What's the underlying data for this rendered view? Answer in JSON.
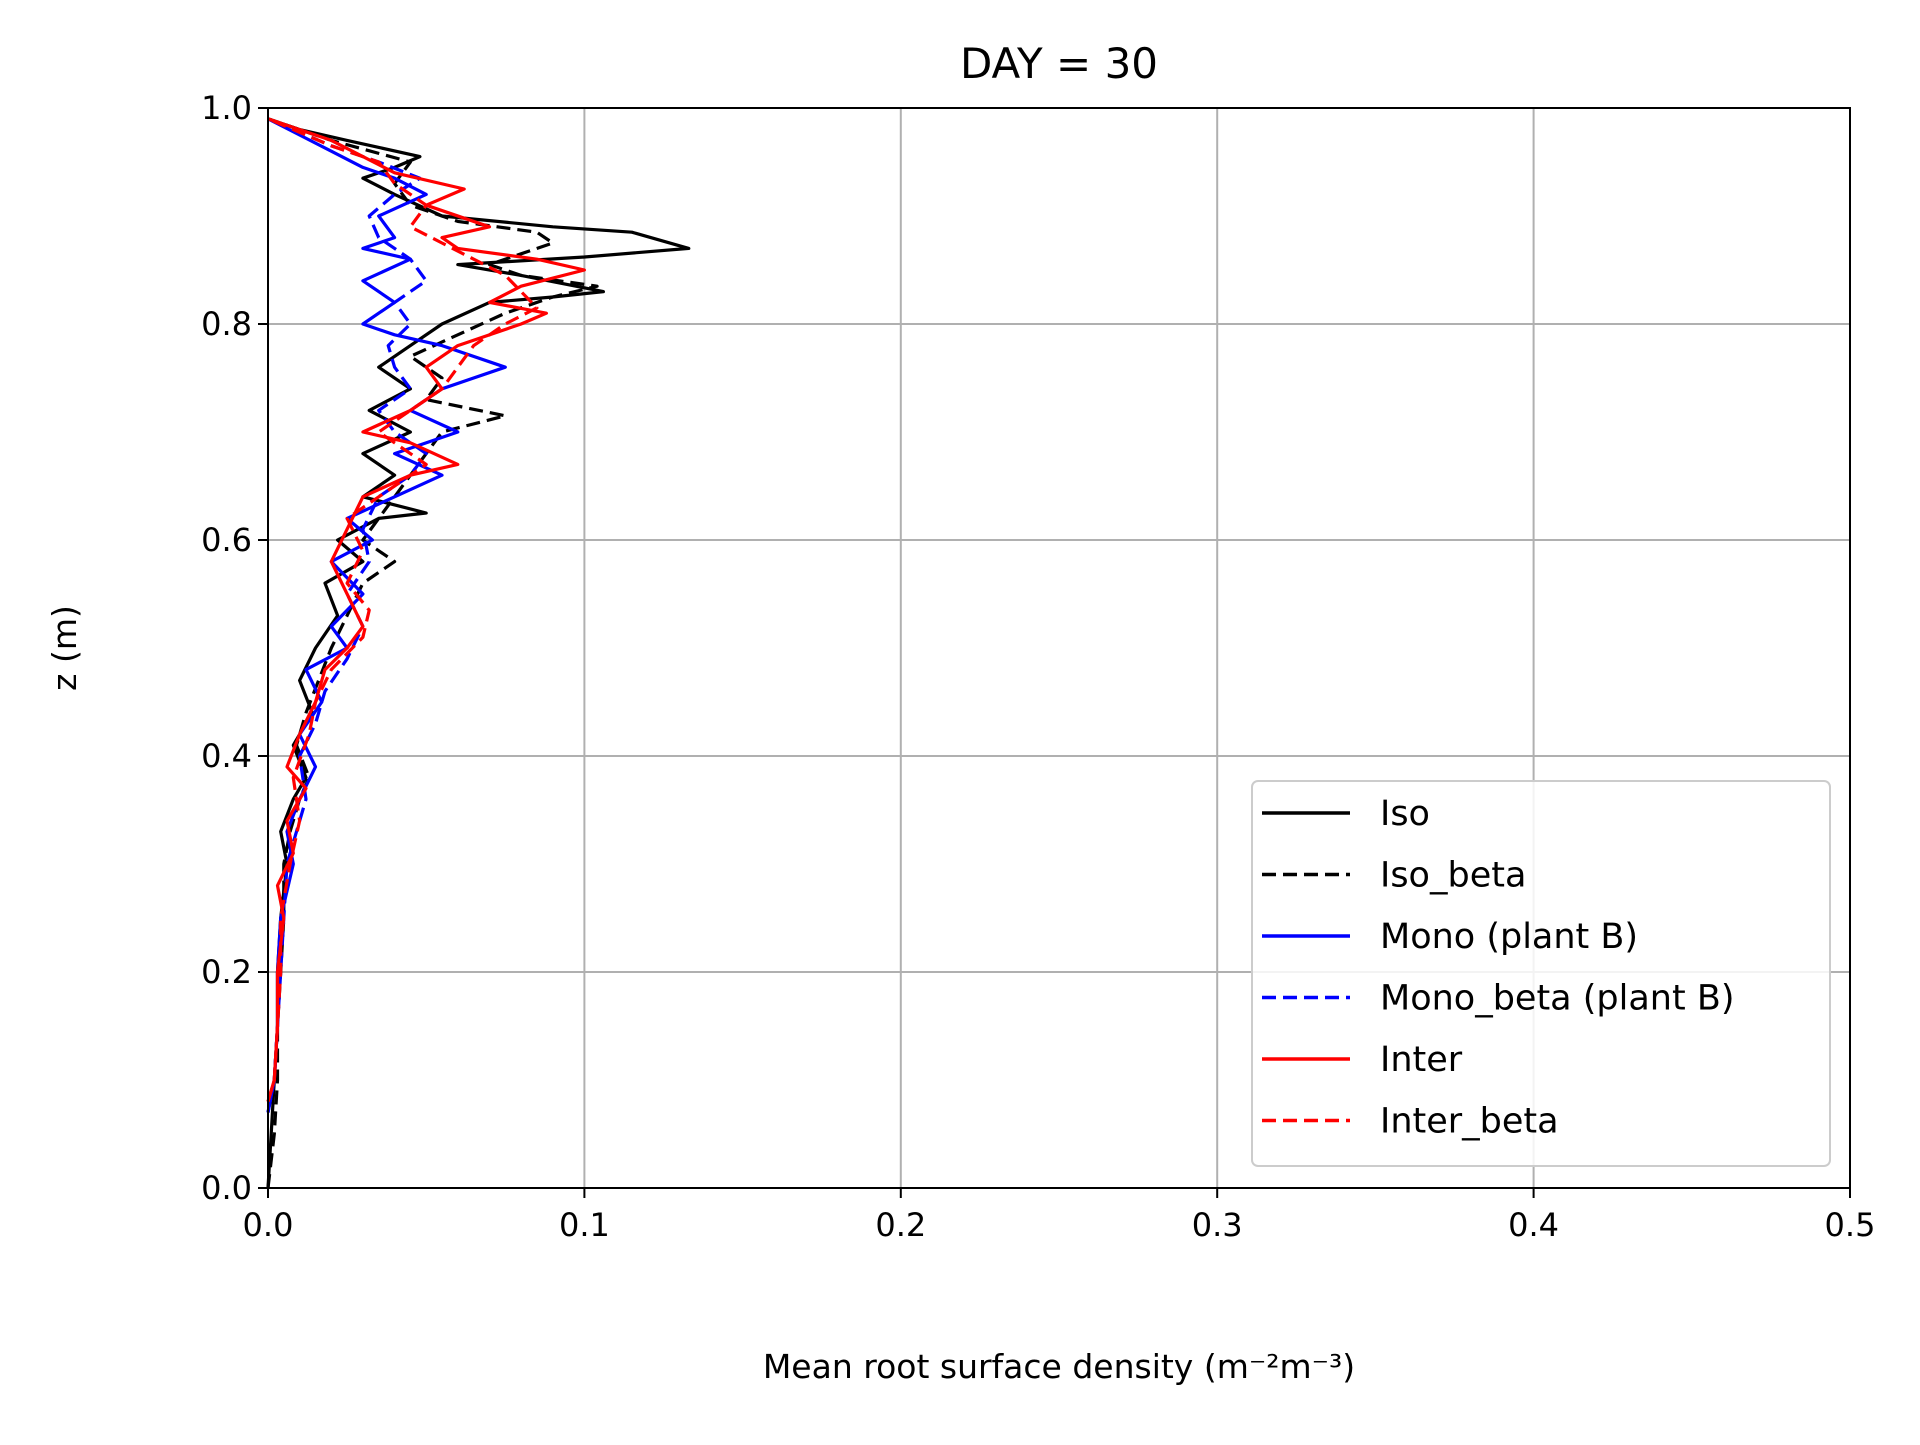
{
  "chart_data": {
    "type": "line",
    "title": "DAY = 30",
    "xlabel": "Mean root surface density (m⁻²m⁻³)",
    "ylabel": "z (m)",
    "xlim": [
      0.0,
      0.5
    ],
    "ylim": [
      0.0,
      1.0
    ],
    "xticks": [
      "0.0",
      "0.1",
      "0.2",
      "0.3",
      "0.4",
      "0.5"
    ],
    "yticks": [
      "0.0",
      "0.2",
      "0.4",
      "0.6",
      "0.8",
      "1.0"
    ],
    "grid": true,
    "legend_position": "lower right",
    "series": [
      {
        "name": "Iso",
        "color": "#000000",
        "dash": "solid",
        "points": [
          [
            0.0,
            0.0
          ],
          [
            0.001,
            0.05
          ],
          [
            0.002,
            0.1
          ],
          [
            0.003,
            0.15
          ],
          [
            0.003,
            0.2
          ],
          [
            0.004,
            0.25
          ],
          [
            0.006,
            0.3
          ],
          [
            0.004,
            0.33
          ],
          [
            0.008,
            0.36
          ],
          [
            0.012,
            0.38
          ],
          [
            0.008,
            0.41
          ],
          [
            0.014,
            0.44
          ],
          [
            0.01,
            0.47
          ],
          [
            0.015,
            0.5
          ],
          [
            0.022,
            0.53
          ],
          [
            0.018,
            0.56
          ],
          [
            0.03,
            0.58
          ],
          [
            0.022,
            0.6
          ],
          [
            0.035,
            0.62
          ],
          [
            0.05,
            0.625
          ],
          [
            0.03,
            0.64
          ],
          [
            0.04,
            0.66
          ],
          [
            0.03,
            0.68
          ],
          [
            0.045,
            0.7
          ],
          [
            0.032,
            0.72
          ],
          [
            0.045,
            0.74
          ],
          [
            0.035,
            0.76
          ],
          [
            0.045,
            0.78
          ],
          [
            0.055,
            0.8
          ],
          [
            0.07,
            0.82
          ],
          [
            0.09,
            0.825
          ],
          [
            0.106,
            0.83
          ],
          [
            0.08,
            0.845
          ],
          [
            0.06,
            0.855
          ],
          [
            0.1,
            0.862
          ],
          [
            0.133,
            0.87
          ],
          [
            0.115,
            0.885
          ],
          [
            0.09,
            0.89
          ],
          [
            0.055,
            0.9
          ],
          [
            0.04,
            0.92
          ],
          [
            0.03,
            0.935
          ],
          [
            0.04,
            0.945
          ],
          [
            0.048,
            0.955
          ],
          [
            0.025,
            0.97
          ],
          [
            0.01,
            0.98
          ],
          [
            0.0,
            0.99
          ]
        ]
      },
      {
        "name": "Iso_beta",
        "color": "#000000",
        "dash": "dashed",
        "points": [
          [
            0.0,
            0.0
          ],
          [
            0.002,
            0.05
          ],
          [
            0.003,
            0.1
          ],
          [
            0.003,
            0.15
          ],
          [
            0.004,
            0.2
          ],
          [
            0.005,
            0.25
          ],
          [
            0.005,
            0.3
          ],
          [
            0.007,
            0.33
          ],
          [
            0.01,
            0.36
          ],
          [
            0.013,
            0.38
          ],
          [
            0.009,
            0.41
          ],
          [
            0.012,
            0.44
          ],
          [
            0.016,
            0.47
          ],
          [
            0.02,
            0.5
          ],
          [
            0.025,
            0.53
          ],
          [
            0.03,
            0.56
          ],
          [
            0.04,
            0.58
          ],
          [
            0.03,
            0.6
          ],
          [
            0.035,
            0.62
          ],
          [
            0.04,
            0.64
          ],
          [
            0.045,
            0.66
          ],
          [
            0.05,
            0.68
          ],
          [
            0.055,
            0.7
          ],
          [
            0.075,
            0.715
          ],
          [
            0.05,
            0.73
          ],
          [
            0.055,
            0.75
          ],
          [
            0.045,
            0.77
          ],
          [
            0.06,
            0.79
          ],
          [
            0.075,
            0.81
          ],
          [
            0.09,
            0.825
          ],
          [
            0.104,
            0.835
          ],
          [
            0.08,
            0.845
          ],
          [
            0.07,
            0.855
          ],
          [
            0.08,
            0.865
          ],
          [
            0.09,
            0.875
          ],
          [
            0.085,
            0.885
          ],
          [
            0.06,
            0.895
          ],
          [
            0.045,
            0.91
          ],
          [
            0.04,
            0.93
          ],
          [
            0.045,
            0.95
          ],
          [
            0.02,
            0.97
          ],
          [
            0.0,
            0.99
          ]
        ]
      },
      {
        "name": "Mono (plant B)",
        "color": "#0000ff",
        "dash": "solid",
        "points": [
          [
            0.0,
            0.07
          ],
          [
            0.002,
            0.1
          ],
          [
            0.003,
            0.15
          ],
          [
            0.003,
            0.2
          ],
          [
            0.004,
            0.25
          ],
          [
            0.008,
            0.3
          ],
          [
            0.006,
            0.33
          ],
          [
            0.01,
            0.36
          ],
          [
            0.015,
            0.39
          ],
          [
            0.01,
            0.42
          ],
          [
            0.017,
            0.45
          ],
          [
            0.012,
            0.48
          ],
          [
            0.025,
            0.5
          ],
          [
            0.02,
            0.52
          ],
          [
            0.03,
            0.55
          ],
          [
            0.02,
            0.58
          ],
          [
            0.033,
            0.6
          ],
          [
            0.025,
            0.62
          ],
          [
            0.04,
            0.64
          ],
          [
            0.055,
            0.66
          ],
          [
            0.04,
            0.68
          ],
          [
            0.06,
            0.7
          ],
          [
            0.045,
            0.72
          ],
          [
            0.055,
            0.74
          ],
          [
            0.075,
            0.76
          ],
          [
            0.055,
            0.78
          ],
          [
            0.04,
            0.79
          ],
          [
            0.03,
            0.8
          ],
          [
            0.04,
            0.82
          ],
          [
            0.03,
            0.84
          ],
          [
            0.045,
            0.86
          ],
          [
            0.03,
            0.87
          ],
          [
            0.04,
            0.88
          ],
          [
            0.035,
            0.9
          ],
          [
            0.05,
            0.92
          ],
          [
            0.04,
            0.935
          ],
          [
            0.03,
            0.945
          ],
          [
            0.02,
            0.96
          ],
          [
            0.01,
            0.975
          ],
          [
            0.0,
            0.99
          ]
        ]
      },
      {
        "name": "Mono_beta (plant B)",
        "color": "#0000ff",
        "dash": "dashed",
        "points": [
          [
            0.0,
            0.07
          ],
          [
            0.002,
            0.1
          ],
          [
            0.003,
            0.15
          ],
          [
            0.004,
            0.2
          ],
          [
            0.005,
            0.25
          ],
          [
            0.006,
            0.3
          ],
          [
            0.009,
            0.33
          ],
          [
            0.012,
            0.36
          ],
          [
            0.01,
            0.4
          ],
          [
            0.015,
            0.43
          ],
          [
            0.018,
            0.46
          ],
          [
            0.025,
            0.49
          ],
          [
            0.03,
            0.52
          ],
          [
            0.025,
            0.55
          ],
          [
            0.032,
            0.58
          ],
          [
            0.03,
            0.61
          ],
          [
            0.035,
            0.64
          ],
          [
            0.045,
            0.66
          ],
          [
            0.05,
            0.68
          ],
          [
            0.04,
            0.7
          ],
          [
            0.035,
            0.72
          ],
          [
            0.045,
            0.74
          ],
          [
            0.04,
            0.76
          ],
          [
            0.038,
            0.78
          ],
          [
            0.045,
            0.8
          ],
          [
            0.04,
            0.82
          ],
          [
            0.05,
            0.84
          ],
          [
            0.045,
            0.86
          ],
          [
            0.035,
            0.88
          ],
          [
            0.032,
            0.9
          ],
          [
            0.04,
            0.92
          ],
          [
            0.048,
            0.935
          ],
          [
            0.035,
            0.95
          ],
          [
            0.02,
            0.965
          ],
          [
            0.0,
            0.99
          ]
        ]
      },
      {
        "name": "Inter",
        "color": "#ff0000",
        "dash": "solid",
        "points": [
          [
            0.0,
            0.08
          ],
          [
            0.002,
            0.1
          ],
          [
            0.003,
            0.15
          ],
          [
            0.003,
            0.2
          ],
          [
            0.005,
            0.25
          ],
          [
            0.003,
            0.28
          ],
          [
            0.008,
            0.31
          ],
          [
            0.006,
            0.34
          ],
          [
            0.012,
            0.37
          ],
          [
            0.006,
            0.39
          ],
          [
            0.01,
            0.42
          ],
          [
            0.015,
            0.45
          ],
          [
            0.018,
            0.48
          ],
          [
            0.025,
            0.5
          ],
          [
            0.03,
            0.52
          ],
          [
            0.025,
            0.55
          ],
          [
            0.02,
            0.58
          ],
          [
            0.025,
            0.61
          ],
          [
            0.03,
            0.64
          ],
          [
            0.045,
            0.66
          ],
          [
            0.06,
            0.67
          ],
          [
            0.045,
            0.69
          ],
          [
            0.03,
            0.7
          ],
          [
            0.045,
            0.72
          ],
          [
            0.055,
            0.74
          ],
          [
            0.05,
            0.76
          ],
          [
            0.06,
            0.78
          ],
          [
            0.08,
            0.8
          ],
          [
            0.088,
            0.81
          ],
          [
            0.07,
            0.82
          ],
          [
            0.08,
            0.835
          ],
          [
            0.1,
            0.85
          ],
          [
            0.085,
            0.86
          ],
          [
            0.06,
            0.87
          ],
          [
            0.055,
            0.88
          ],
          [
            0.07,
            0.89
          ],
          [
            0.05,
            0.91
          ],
          [
            0.062,
            0.925
          ],
          [
            0.04,
            0.94
          ],
          [
            0.03,
            0.955
          ],
          [
            0.02,
            0.97
          ],
          [
            0.0,
            0.99
          ]
        ]
      },
      {
        "name": "Inter_beta",
        "color": "#ff0000",
        "dash": "dashed",
        "points": [
          [
            0.0,
            0.08
          ],
          [
            0.002,
            0.1
          ],
          [
            0.003,
            0.15
          ],
          [
            0.004,
            0.2
          ],
          [
            0.004,
            0.25
          ],
          [
            0.007,
            0.3
          ],
          [
            0.01,
            0.34
          ],
          [
            0.008,
            0.38
          ],
          [
            0.013,
            0.42
          ],
          [
            0.015,
            0.45
          ],
          [
            0.02,
            0.48
          ],
          [
            0.03,
            0.51
          ],
          [
            0.032,
            0.535
          ],
          [
            0.025,
            0.56
          ],
          [
            0.03,
            0.59
          ],
          [
            0.025,
            0.62
          ],
          [
            0.04,
            0.65
          ],
          [
            0.05,
            0.67
          ],
          [
            0.04,
            0.69
          ],
          [
            0.035,
            0.7
          ],
          [
            0.045,
            0.72
          ],
          [
            0.055,
            0.74
          ],
          [
            0.06,
            0.76
          ],
          [
            0.065,
            0.78
          ],
          [
            0.075,
            0.8
          ],
          [
            0.085,
            0.815
          ],
          [
            0.08,
            0.83
          ],
          [
            0.075,
            0.845
          ],
          [
            0.065,
            0.86
          ],
          [
            0.055,
            0.875
          ],
          [
            0.045,
            0.89
          ],
          [
            0.05,
            0.91
          ],
          [
            0.04,
            0.93
          ],
          [
            0.035,
            0.95
          ],
          [
            0.02,
            0.965
          ],
          [
            0.0,
            0.99
          ]
        ]
      }
    ]
  }
}
